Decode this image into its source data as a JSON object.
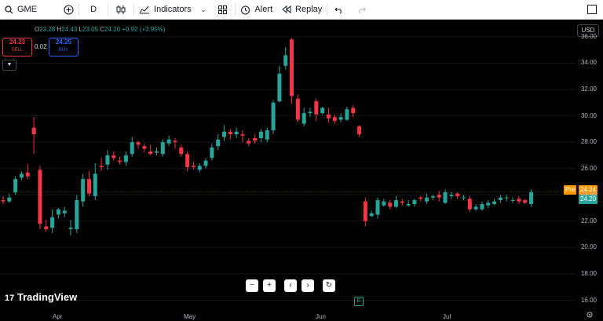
{
  "toolbar": {
    "symbol": "GME",
    "interval": "D",
    "indicators_label": "Indicators",
    "alert_label": "Alert",
    "replay_label": "Replay"
  },
  "legend": {
    "o_lab": "O",
    "o": "23.28",
    "h_lab": "H",
    "h": "24.43",
    "l_lab": "L",
    "l": "23.05",
    "c_lab": "C",
    "c": "24.20",
    "change": "+0.92 (+3.95%)"
  },
  "trade": {
    "sell_price": "24.23",
    "sell_label": "SELL",
    "spread": "0.02",
    "buy_price": "24.25",
    "buy_label": "BUY"
  },
  "currency": "USD",
  "price_tags": {
    "pre_label": "Pre",
    "pre_value": "24.24",
    "last_value": "24.20"
  },
  "logo_text": "TradingView",
  "earnings_marker": "E",
  "chart_data": {
    "type": "candlestick",
    "ylim": [
      15.2,
      37.3
    ],
    "ytick_values": [
      16,
      18,
      20,
      22,
      24,
      26,
      28,
      30,
      32,
      34,
      36
    ],
    "ytick_labels": [
      "16.00",
      "18.00",
      "20.00",
      "22.00",
      "24.00",
      "26.00",
      "28.00",
      "30.00",
      "32.00",
      "34.00",
      "36.00"
    ],
    "xtick_labels": [
      "Apr",
      "May",
      "Jun",
      "Jul"
    ],
    "price_line": 24.2,
    "up_color": "#26a69a",
    "down_color": "#f23645",
    "candles": [
      [
        23.6,
        23.5,
        23.9,
        23.3
      ],
      [
        23.5,
        23.8,
        24.1,
        23.4
      ],
      [
        24.2,
        25.2,
        25.4,
        24.0
      ],
      [
        25.3,
        25.6,
        25.8,
        25.1
      ],
      [
        25.7,
        25.4,
        26.3,
        25.2
      ],
      [
        29.1,
        28.6,
        29.9,
        27.1
      ],
      [
        25.9,
        21.8,
        26.2,
        21.4
      ],
      [
        21.6,
        21.4,
        22.1,
        21.2
      ],
      [
        21.5,
        22.3,
        22.9,
        21.1
      ],
      [
        22.5,
        22.9,
        23.0,
        22.2
      ],
      [
        22.6,
        22.8,
        23.1,
        22.3
      ],
      [
        21.4,
        21.5,
        22.1,
        20.9
      ],
      [
        21.4,
        23.6,
        24.0,
        21.1
      ],
      [
        23.5,
        25.2,
        25.6,
        23.1
      ],
      [
        25.2,
        24.1,
        25.8,
        23.9
      ],
      [
        23.9,
        25.6,
        26.4,
        23.6
      ],
      [
        26.2,
        26.1,
        26.8,
        25.8
      ],
      [
        26.3,
        27.0,
        27.4,
        25.9
      ],
      [
        27.0,
        26.8,
        27.3,
        26.6
      ],
      [
        26.6,
        26.5,
        26.9,
        26.3
      ],
      [
        26.5,
        27.0,
        27.3,
        26.2
      ],
      [
        27.1,
        28.0,
        28.4,
        26.9
      ],
      [
        28.0,
        27.8,
        28.1,
        27.5
      ],
      [
        27.7,
        27.5,
        27.9,
        27.2
      ],
      [
        27.3,
        27.1,
        27.8,
        27.0
      ],
      [
        27.2,
        27.3,
        27.6,
        27.0
      ],
      [
        27.1,
        28.0,
        28.2,
        26.9
      ],
      [
        27.9,
        28.2,
        28.5,
        27.7
      ],
      [
        28.1,
        28.0,
        28.3,
        27.5
      ],
      [
        27.6,
        27.1,
        27.8,
        26.9
      ],
      [
        27.1,
        26.1,
        27.3,
        25.8
      ],
      [
        26.2,
        26.1,
        26.5,
        25.9
      ],
      [
        25.9,
        26.2,
        26.4,
        25.7
      ],
      [
        26.2,
        26.6,
        26.8,
        26.0
      ],
      [
        26.8,
        27.6,
        27.9,
        26.6
      ],
      [
        27.7,
        28.2,
        28.6,
        27.4
      ],
      [
        28.4,
        28.8,
        29.3,
        28.1
      ],
      [
        28.8,
        28.6,
        29.0,
        28.2
      ],
      [
        28.6,
        28.8,
        29.1,
        28.3
      ],
      [
        28.6,
        28.5,
        28.9,
        28.0
      ],
      [
        28.1,
        27.9,
        28.3,
        27.7
      ],
      [
        28.3,
        28.1,
        28.6,
        27.9
      ],
      [
        28.3,
        28.8,
        29.0,
        28.0
      ],
      [
        28.2,
        28.9,
        29.1,
        28.0
      ],
      [
        28.9,
        31.0,
        31.2,
        28.6
      ],
      [
        31.1,
        33.2,
        33.8,
        31.0
      ],
      [
        33.8,
        34.6,
        35.2,
        33.5
      ],
      [
        35.8,
        31.5,
        35.9,
        30.9
      ],
      [
        31.3,
        29.7,
        31.6,
        29.5
      ],
      [
        29.4,
        30.2,
        30.6,
        29.2
      ],
      [
        30.2,
        30.3,
        30.6,
        29.9
      ],
      [
        31.1,
        30.1,
        31.3,
        29.6
      ],
      [
        30.2,
        30.6,
        30.7,
        30.1
      ],
      [
        30.1,
        29.8,
        30.6,
        29.5
      ],
      [
        29.9,
        29.6,
        30.1,
        29.4
      ],
      [
        29.7,
        29.9,
        30.2,
        29.5
      ],
      [
        29.7,
        30.5,
        30.7,
        29.6
      ],
      [
        30.6,
        30.2,
        30.8,
        29.9
      ],
      [
        29.2,
        28.6,
        29.3,
        28.4
      ],
      [
        23.5,
        22.0,
        23.8,
        21.6
      ],
      [
        22.4,
        22.6,
        22.8,
        22.3
      ],
      [
        22.5,
        23.6,
        23.8,
        22.2
      ],
      [
        23.2,
        23.5,
        23.7,
        23.1
      ],
      [
        23.4,
        23.1,
        23.6,
        22.9
      ],
      [
        23.1,
        23.6,
        23.9,
        23.0
      ],
      [
        23.5,
        23.4,
        23.7,
        23.2
      ],
      [
        23.2,
        23.3,
        23.6,
        23.1
      ],
      [
        23.3,
        23.6,
        23.7,
        23.1
      ],
      [
        23.8,
        23.7,
        23.9,
        23.5
      ],
      [
        23.5,
        23.8,
        24.1,
        23.3
      ],
      [
        23.8,
        23.9,
        24.0,
        23.6
      ],
      [
        24.0,
        23.8,
        24.3,
        23.5
      ],
      [
        23.4,
        24.2,
        24.4,
        23.3
      ],
      [
        23.9,
        24.0,
        24.2,
        23.7
      ],
      [
        24.1,
        23.9,
        24.2,
        23.7
      ],
      [
        23.8,
        23.8,
        24.0,
        23.6
      ],
      [
        23.7,
        22.9,
        23.9,
        22.7
      ],
      [
        22.9,
        23.1,
        23.3,
        22.8
      ],
      [
        22.9,
        23.3,
        23.5,
        22.8
      ],
      [
        23.2,
        23.4,
        23.6,
        23.0
      ],
      [
        23.3,
        23.5,
        23.7,
        23.2
      ],
      [
        23.6,
        23.8,
        24.0,
        23.4
      ],
      [
        23.8,
        23.8,
        24.0,
        23.5
      ],
      [
        23.6,
        23.6,
        23.8,
        23.4
      ],
      [
        23.7,
        23.5,
        23.9,
        23.3
      ],
      [
        23.6,
        23.4,
        23.7,
        23.3
      ],
      [
        23.3,
        24.2,
        24.4,
        23.1
      ]
    ]
  }
}
